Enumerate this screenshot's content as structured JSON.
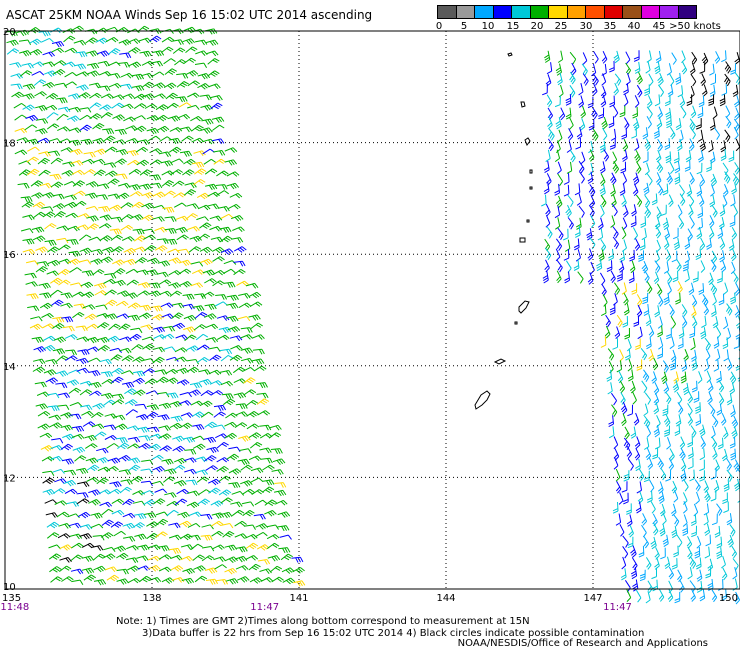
{
  "title": "ASCAT 25KM NOAA Winds Sep 16 15:02 UTC 2014 ascending",
  "legend": {
    "colors": [
      "#5a5a5a",
      "#9a9a9a",
      "#00a8ff",
      "#0000ff",
      "#00c8d8",
      "#00b000",
      "#ffd800",
      "#ffa000",
      "#ff5000",
      "#e00000",
      "#9a5018",
      "#e000e0",
      "#a020f0",
      "#300080"
    ],
    "labels": [
      "0",
      "5",
      "10",
      "15",
      "20",
      "25",
      "30",
      "35",
      "40",
      "45",
      ">50 knots"
    ]
  },
  "map": {
    "lon_ticks": [
      "135",
      "138",
      "141",
      "144",
      "147",
      "150"
    ],
    "lat_ticks": [
      "20",
      "18",
      "16",
      "14",
      "12",
      "10"
    ],
    "times": [
      {
        "text": "11:48",
        "lon": 135.2
      },
      {
        "text": "11:47",
        "lon": 140.3
      },
      {
        "text": "11:47",
        "lon": 147.5
      }
    ]
  },
  "notes": [
    "Note: 1) Times are GMT 2)Times along bottom correspond to measurement at 15N",
    "3)Data buffer is 22 hrs from Sep 16 15:02 UTC 2014 4) Black circles indicate possible contamination"
  ],
  "credit": "NOAA/NESDIS/Office of Research and Applications"
}
